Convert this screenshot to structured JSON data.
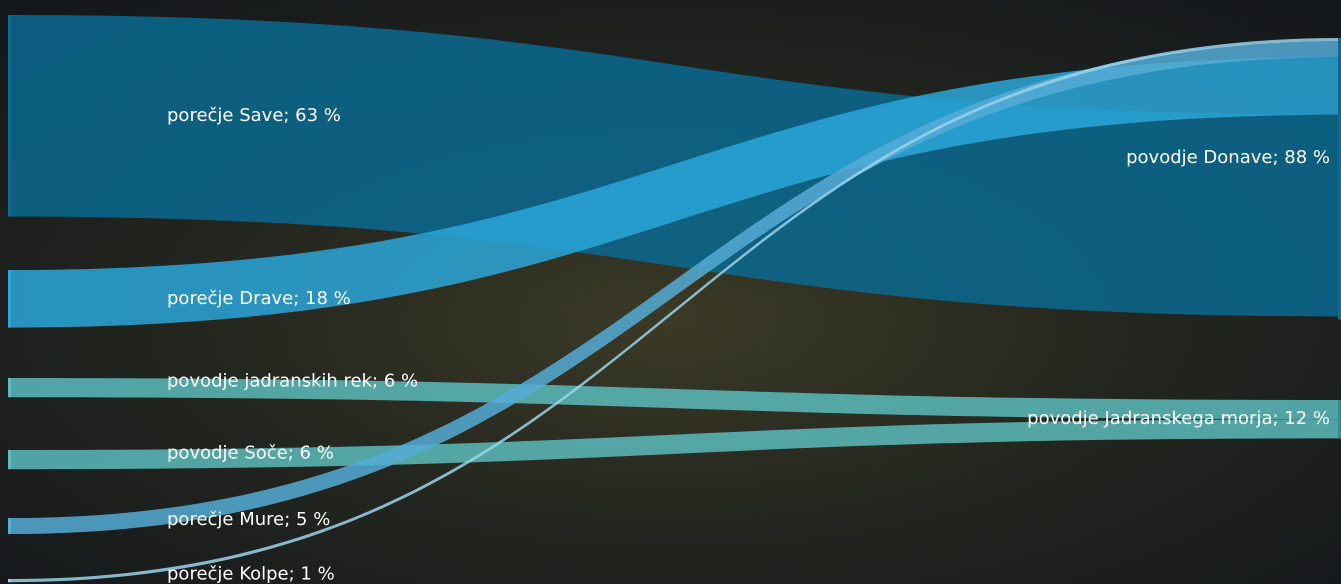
{
  "chart_data": {
    "type": "sankey",
    "nodes": [
      {
        "label": "porečje Save; 63 %",
        "value": 63,
        "color": "#0b6a91"
      },
      {
        "label": "porečje Drave; 18 %",
        "value": 18,
        "color": "#2aa7d9"
      },
      {
        "label": "povodje jadranskih rek; 6 %",
        "value": 6,
        "color": "#5cbcbc"
      },
      {
        "label": "povodje Soče; 6 %",
        "value": 6,
        "color": "#5cbcbc"
      },
      {
        "label": "porečje Mure; 5 %",
        "value": 5,
        "color": "#55acd6"
      },
      {
        "label": "porečje Kolpe; 1 %",
        "value": 1,
        "color": "#9ad3ea"
      },
      {
        "label": "povodje Donave; 88 %",
        "value": 88,
        "color": "#0b6a91"
      },
      {
        "label": "povodje Jadranskega morja; 12 %",
        "value": 12,
        "color": "#2f8f95"
      }
    ],
    "links": [
      {
        "source": 5,
        "target": 6,
        "value": 1
      },
      {
        "source": 4,
        "target": 6,
        "value": 5
      },
      {
        "source": 1,
        "target": 6,
        "value": 18
      },
      {
        "source": 0,
        "target": 6,
        "value": 63
      },
      {
        "source": 2,
        "target": 7,
        "value": 6
      },
      {
        "source": 3,
        "target": 7,
        "value": 6
      }
    ]
  }
}
